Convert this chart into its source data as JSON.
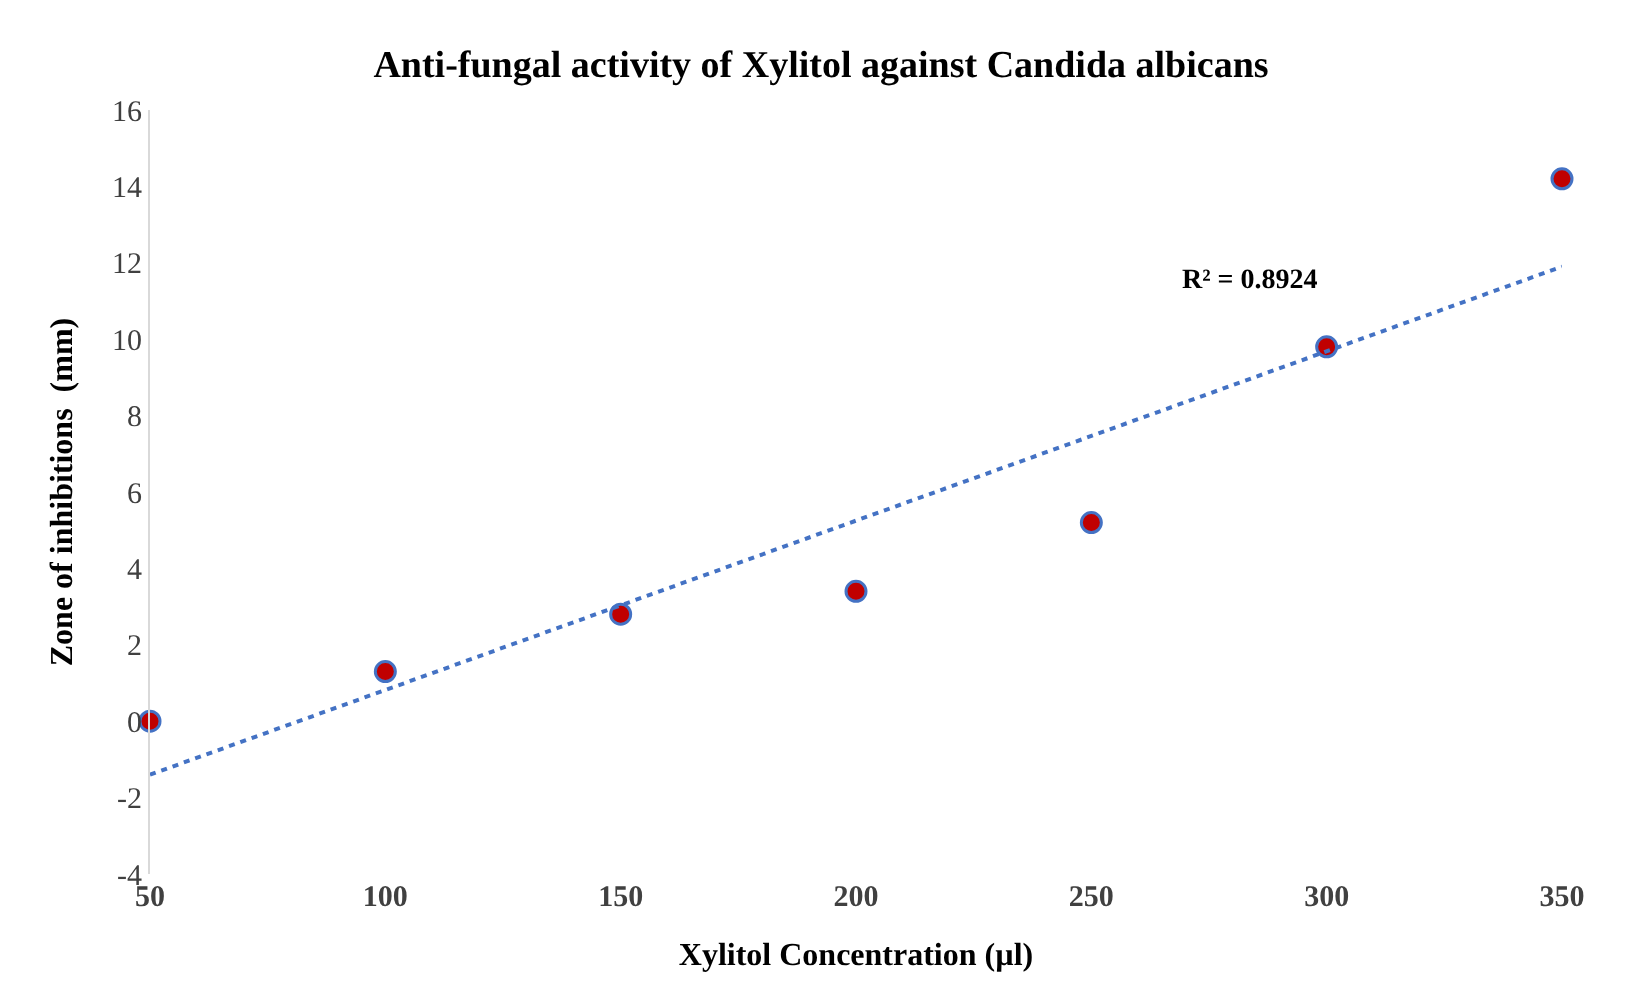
{
  "chart_data": {
    "type": "scatter",
    "title": "Anti-fungal activity of Xylitol against Candida albicans",
    "xlabel": "Xylitol Concentration (µl)",
    "ylabel": "Zone of inhibitions  (mm)",
    "x": [
      50,
      100,
      150,
      200,
      250,
      300,
      350
    ],
    "series": [
      {
        "color": "#c00000",
        "values": [
          0,
          1.3,
          2.8,
          3.4,
          5.2,
          9.8,
          14.2
        ],
        "marker": "circle"
      },
      {
        "type": "line",
        "color": "#4472c4",
        "x": [
          50,
          350
        ],
        "values": [
          -1.4,
          11.9
        ],
        "line_style": "dotted",
        "marker": "none"
      }
    ],
    "xlim": [
      50,
      350
    ],
    "xticks": [
      50,
      100,
      150,
      200,
      250,
      300,
      350
    ],
    "ylim": [
      -4,
      16
    ],
    "yticks": [
      -4,
      -2,
      0,
      2,
      4,
      6,
      8,
      10,
      12,
      14,
      16
    ],
    "annotations": [
      "R² = 0.8924"
    ]
  }
}
